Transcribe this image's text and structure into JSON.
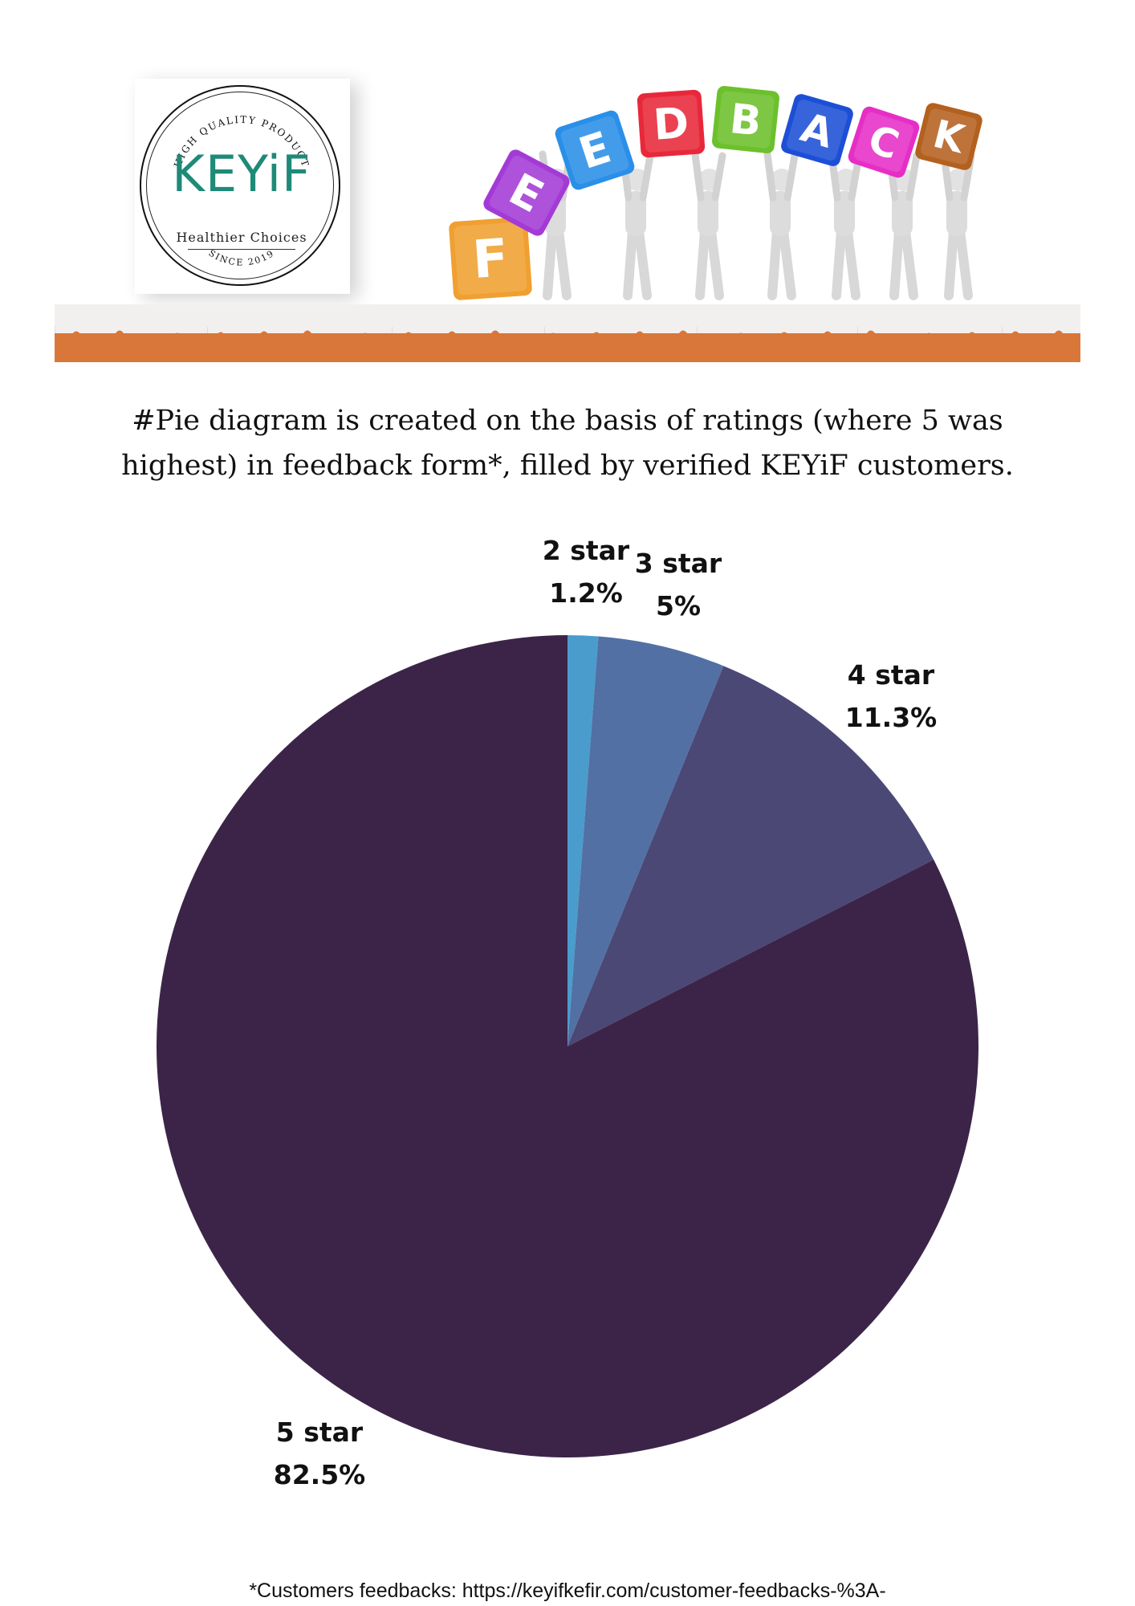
{
  "logo": {
    "arc_text": "HIGH QUALITY PRODUCT",
    "brand": "KEYiF",
    "tagline": "Healthier Choices",
    "since": "SINCE 2019"
  },
  "feedback_banner": {
    "letters": [
      "F",
      "E",
      "E",
      "D",
      "B",
      "A",
      "C",
      "K"
    ],
    "colors": [
      "#f0a030",
      "#a33ad6",
      "#2a8fe8",
      "#e8283a",
      "#6cc02c",
      "#1d4fd6",
      "#e62ec6",
      "#b4601e"
    ]
  },
  "intro": {
    "line1": "#Pie diagram is created on the basis of ratings (where 5 was",
    "line2": "highest) in feedback form*, filled by verified KEYiF customers."
  },
  "chart_data": {
    "type": "pie",
    "title": "",
    "categories": [
      "2 star",
      "3 star",
      "4 star",
      "5 star"
    ],
    "values": [
      1.2,
      5,
      11.3,
      82.5
    ],
    "value_labels": [
      "1.2%",
      "5%",
      "11.3%",
      "82.5%"
    ],
    "colors": [
      "#4a9ccc",
      "#5270a3",
      "#4b4876",
      "#3c2448"
    ],
    "start_angle": "12 o'clock",
    "direction": "clockwise",
    "legend": "none"
  },
  "footnote": "*Customers feedbacks: https://keyifkefir.com/customer-feedbacks-%3A-"
}
